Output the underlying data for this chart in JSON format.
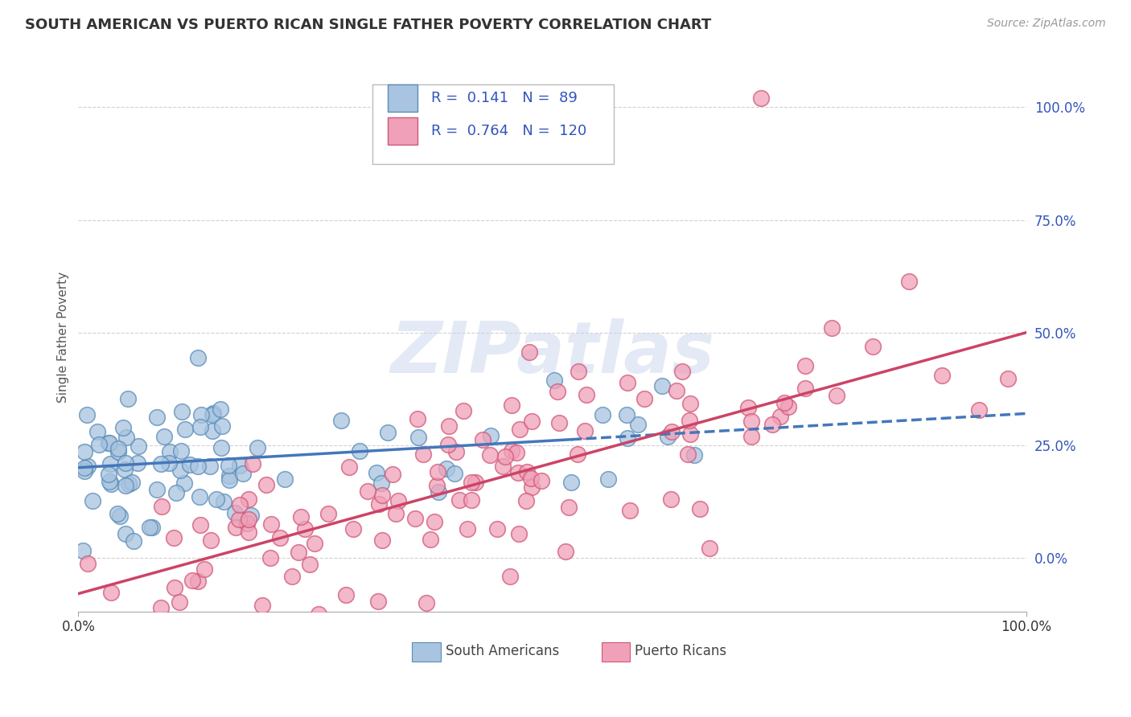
{
  "title": "SOUTH AMERICAN VS PUERTO RICAN SINGLE FATHER POVERTY CORRELATION CHART",
  "source_text": "Source: ZipAtlas.com",
  "ylabel": "Single Father Poverty",
  "ytick_labels": [
    "0.0%",
    "25.0%",
    "50.0%",
    "75.0%",
    "100.0%"
  ],
  "ytick_values": [
    0.0,
    0.25,
    0.5,
    0.75,
    1.0
  ],
  "xlim": [
    0.0,
    1.0
  ],
  "ylim": [
    -0.12,
    1.1
  ],
  "south_american_color": "#a8c4e0",
  "south_american_edge": "#5b8db8",
  "puerto_rican_color": "#f0a0b8",
  "puerto_rican_edge": "#d05878",
  "sa_line_color": "#4477bb",
  "pr_line_color": "#cc4466",
  "legend_R1": "0.141",
  "legend_N1": "89",
  "legend_R2": "0.764",
  "legend_N2": "120",
  "legend_label1": "South Americans",
  "legend_label2": "Puerto Ricans",
  "watermark": "ZIPatlas",
  "background_color": "#ffffff",
  "grid_color": "#cccccc",
  "title_fontsize": 13,
  "source_fontsize": 10,
  "legend_text_color": "#3355bb",
  "sa_slope": 0.12,
  "sa_intercept": 0.2,
  "pr_slope": 0.58,
  "pr_intercept": -0.08,
  "seed": 7
}
